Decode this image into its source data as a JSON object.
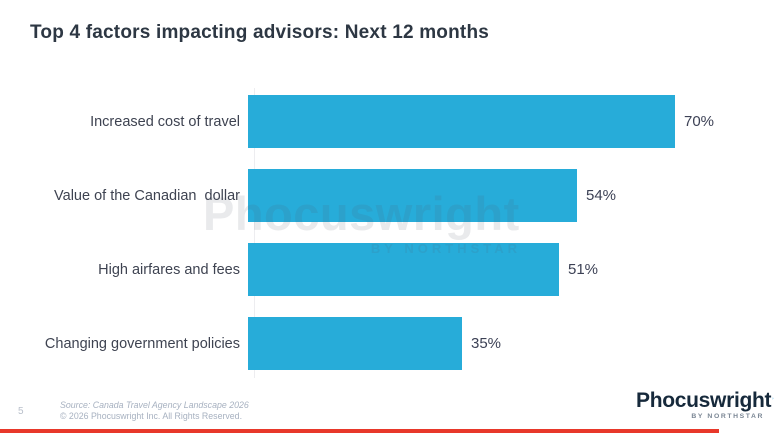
{
  "title": "Top 4 factors impacting advisors: Next 12 months",
  "chart_data": {
    "type": "bar",
    "orientation": "horizontal",
    "title": "Top 4 factors impacting advisors: Next 12 months",
    "categories": [
      "Increased cost of travel",
      "Value of the Canadian  dollar",
      "High airfares and fees",
      "Changing government policies"
    ],
    "values": [
      70,
      54,
      51,
      35
    ],
    "value_labels": [
      "70%",
      "54%",
      "51%",
      "35%"
    ],
    "xlim": [
      0,
      80
    ],
    "grid": false,
    "legend": "none",
    "bar_color": "#27acd9"
  },
  "watermark": {
    "name": "Phocuswright",
    "sub": "BY NORTHSTAR"
  },
  "footer": {
    "page_number": "5",
    "source_line1": "Source: Canada Travel Agency Landscape 2026",
    "source_line2": "© 2026 Phocuswright Inc. All Rights Reserved.",
    "logo_text": "Phocuswright",
    "logo_sub": "BY NORTHSTAR"
  },
  "colors": {
    "bar": "#27acd9",
    "title_text": "#2d3743",
    "accent_red": "#e8382a",
    "logo_navy": "#16293b",
    "logo_blue": "#2d9fd8",
    "muted_text": "#a7b1c0"
  }
}
